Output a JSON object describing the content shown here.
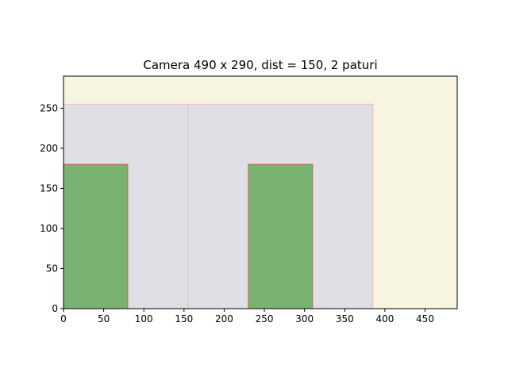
{
  "chart_data": {
    "type": "bar",
    "title": "Camera 490 x 290, dist = 150, 2 paturi",
    "xlim": [
      0,
      490
    ],
    "ylim": [
      0,
      290
    ],
    "xticks": [
      0,
      50,
      100,
      150,
      200,
      250,
      300,
      350,
      400,
      450
    ],
    "yticks": [
      0,
      50,
      100,
      150,
      200,
      250
    ],
    "grid": false,
    "room": {
      "width": 490,
      "height": 290,
      "color": "#f7f5e1"
    },
    "zones": [
      {
        "x0": 0,
        "x1": 155,
        "height": 255,
        "color": "#e0dfe6",
        "stroke": "#eabcbc"
      },
      {
        "x0": 155,
        "x1": 385,
        "height": 255,
        "color": "#e0dfe6",
        "stroke": "#eabcbc"
      }
    ],
    "beds": [
      {
        "x0": 0,
        "x1": 80,
        "height": 180,
        "color": "#79b372",
        "stroke": "#d1604f"
      },
      {
        "x0": 230,
        "x1": 310,
        "height": 180,
        "color": "#79b372",
        "stroke": "#d1604f"
      }
    ]
  }
}
